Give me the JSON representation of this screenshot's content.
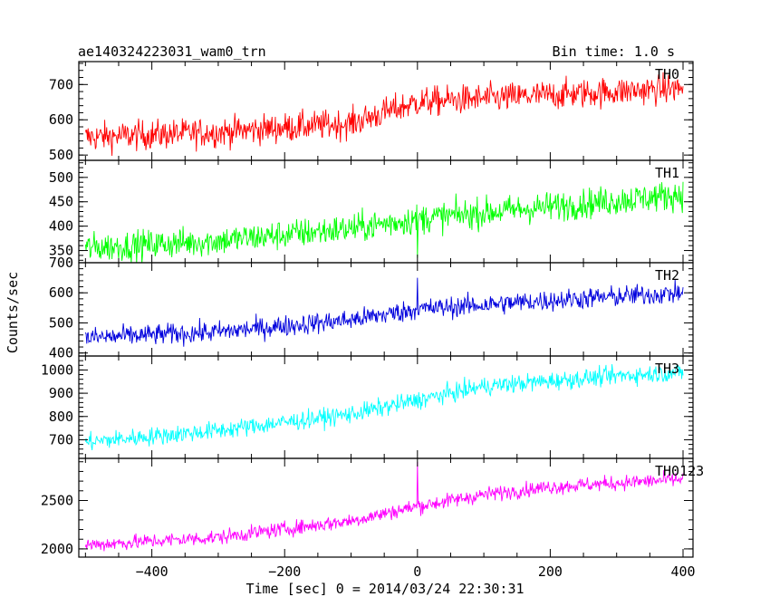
{
  "chart_data": {
    "type": "line",
    "title": "ae140324223031_wam0_trn",
    "subtitle": "Bin time: 1.0 s",
    "xlabel": "Time [sec] 0 = 2014/03/24 22:30:31",
    "ylabel": "Counts/sec",
    "xlim": [
      -510,
      415
    ],
    "x_ticks": [
      -400,
      -200,
      0,
      200,
      400
    ],
    "x_tick_labels": [
      "−400",
      "−200",
      "0",
      "200",
      "400"
    ],
    "panels": [
      {
        "name": "TH0",
        "color": "#ff0000",
        "ylim": [
          485,
          765
        ],
        "y_ticks": [
          500,
          600,
          700
        ],
        "y_tick_labels": [
          "500",
          "600",
          "700"
        ],
        "trend": [
          [
            -500,
            550
          ],
          [
            -300,
            565
          ],
          [
            -100,
            590
          ],
          [
            0,
            650
          ],
          [
            100,
            660
          ],
          [
            400,
            690
          ]
        ],
        "noise": 30,
        "spikes": []
      },
      {
        "name": "TH1",
        "color": "#00ff00",
        "ylim": [
          325,
          535
        ],
        "y_ticks": [
          350,
          400,
          450,
          500
        ],
        "y_tick_labels": [
          "350",
          "400",
          "450",
          "500"
        ],
        "trend": [
          [
            -500,
            355
          ],
          [
            -300,
            370
          ],
          [
            -100,
            395
          ],
          [
            0,
            415
          ],
          [
            200,
            440
          ],
          [
            400,
            465
          ]
        ],
        "noise": 22,
        "spikes": [
          [
            0,
            525
          ],
          [
            0,
            335
          ]
        ]
      },
      {
        "name": "TH2",
        "color": "#0000dd",
        "ylim": [
          390,
          700
        ],
        "y_ticks": [
          400,
          500,
          600,
          700
        ],
        "y_tick_labels": [
          "400",
          "500",
          "600",
          "700"
        ],
        "trend": [
          [
            -500,
            450
          ],
          [
            -300,
            470
          ],
          [
            -100,
            510
          ],
          [
            0,
            545
          ],
          [
            200,
            575
          ],
          [
            400,
            600
          ]
        ],
        "noise": 25,
        "spikes": [
          [
            0,
            650
          ]
        ]
      },
      {
        "name": "TH3",
        "color": "#00ffff",
        "ylim": [
          620,
          1060
        ],
        "y_ticks": [
          700,
          800,
          900,
          1000
        ],
        "y_tick_labels": [
          "700",
          "800",
          "900",
          "1000"
        ],
        "trend": [
          [
            -500,
            690
          ],
          [
            -300,
            740
          ],
          [
            -100,
            810
          ],
          [
            0,
            870
          ],
          [
            100,
            930
          ],
          [
            300,
            975
          ],
          [
            400,
            990
          ]
        ],
        "noise": 28,
        "spikes": []
      },
      {
        "name": "TH0123",
        "color": "#ff00ff",
        "ylim": [
          1915,
          2935
        ],
        "y_ticks": [
          2000,
          2500
        ],
        "y_tick_labels": [
          "2000",
          "2500"
        ],
        "trend": [
          [
            -500,
            2040
          ],
          [
            -300,
            2120
          ],
          [
            -100,
            2290
          ],
          [
            0,
            2440
          ],
          [
            100,
            2560
          ],
          [
            200,
            2640
          ],
          [
            400,
            2720
          ]
        ],
        "noise": 55,
        "spikes": [
          [
            0,
            2900
          ]
        ]
      }
    ]
  }
}
